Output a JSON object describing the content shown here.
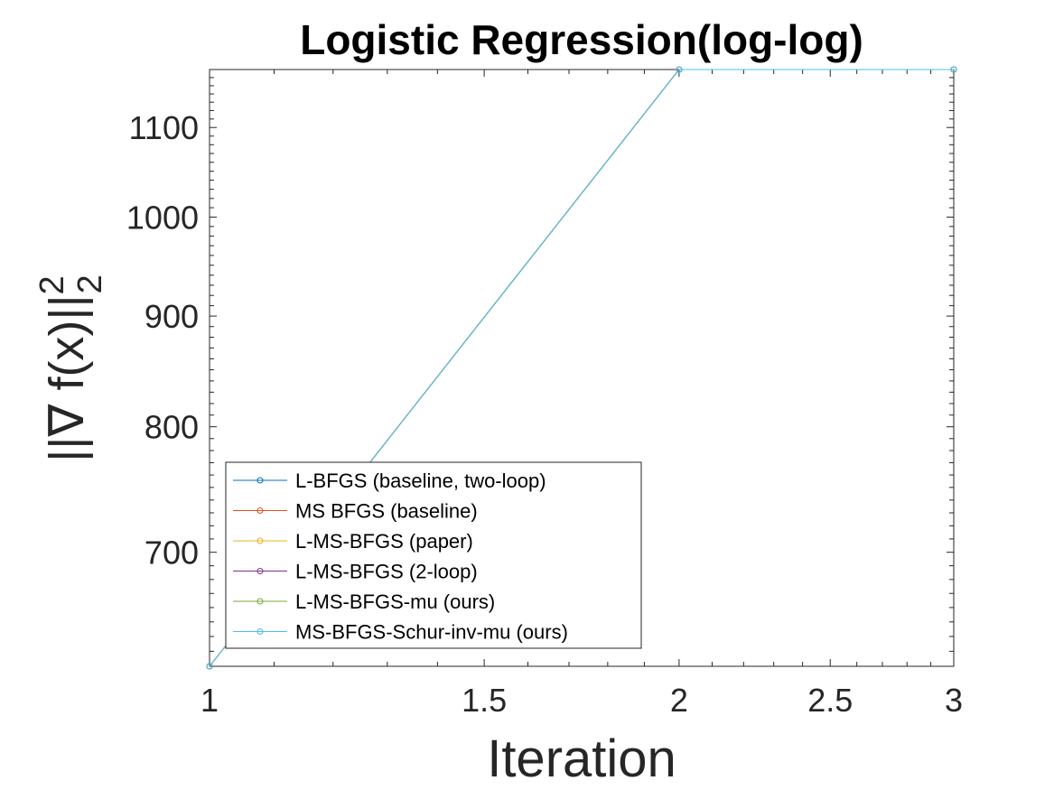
{
  "chart_data": {
    "type": "line",
    "title": "Logistic Regression(log-log)",
    "xlabel": "Iteration",
    "ylabel": {
      "prefix": "||∇ f(x)||",
      "superscript": "2",
      "subscript": "2"
    },
    "x_scale": "log",
    "y_scale": "log",
    "xlim": [
      1,
      3
    ],
    "ylim": [
      620,
      1170
    ],
    "x_ticks": [
      1,
      1.5,
      2,
      2.5,
      3
    ],
    "x_tick_labels": [
      "1",
      "1.5",
      "2",
      "2.5",
      "3"
    ],
    "y_ticks": [
      700,
      800,
      900,
      1000,
      1100
    ],
    "y_tick_labels": [
      "700",
      "800",
      "900",
      "1000",
      "1100"
    ],
    "grid": false,
    "legend_location": "bottom-left",
    "x": [
      1,
      2,
      3
    ],
    "series": [
      {
        "name": "L-BFGS (baseline, two-loop)",
        "color": "#0072BD",
        "values": [
          620,
          1170,
          1170
        ]
      },
      {
        "name": "MS BFGS (baseline)",
        "color": "#D95319",
        "values": [
          620,
          1170,
          1170
        ]
      },
      {
        "name": "L-MS-BFGS (paper)",
        "color": "#EDB120",
        "values": [
          620,
          1170,
          1170
        ]
      },
      {
        "name": "L-MS-BFGS (2-loop)",
        "color": "#7E2F8E",
        "values": [
          620,
          1170,
          1170
        ]
      },
      {
        "name": "L-MS-BFGS-mu (ours)",
        "color": "#77AC30",
        "values": [
          620,
          1170,
          1170
        ]
      },
      {
        "name": "MS-BFGS-Schur-inv-mu (ours)",
        "color": "#4DBEEE",
        "values": [
          620,
          1170,
          1170
        ]
      }
    ]
  }
}
